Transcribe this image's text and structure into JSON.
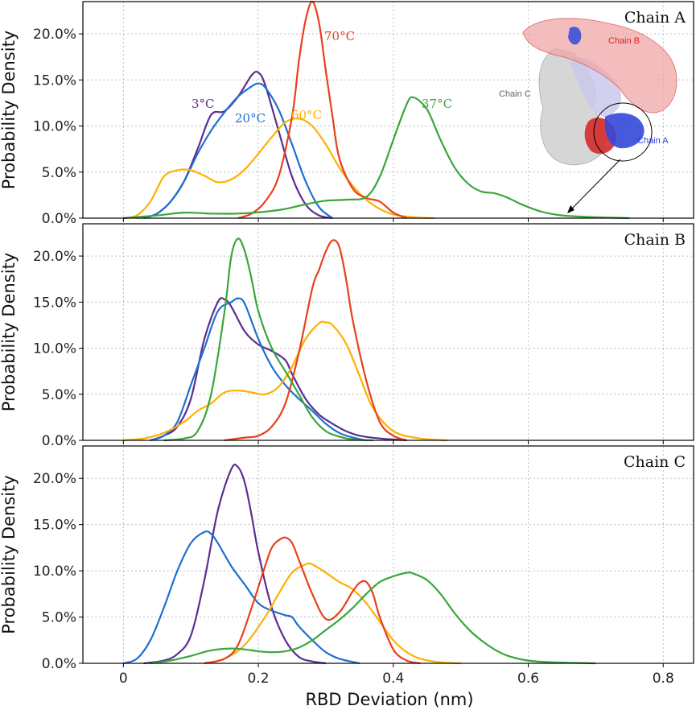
{
  "chart_data": [
    {
      "type": "line",
      "title": "Chain A",
      "xlabel": "",
      "ylabel": "Probability Density",
      "xlim": [
        -0.06,
        0.845
      ],
      "ylim": [
        0,
        0.235
      ],
      "xticks": [],
      "yticks": [
        "0.0%",
        "5.0%",
        "10.0%",
        "15.0%",
        "20.0%"
      ],
      "yticks_values": [
        0,
        0.05,
        0.1,
        0.15,
        0.2
      ],
      "xgrid": [
        0,
        0.2,
        0.4,
        0.6,
        0.8
      ],
      "series": [
        {
          "name": "3°C",
          "color": "#5c2d91",
          "x": [
            0.03,
            0.05,
            0.07,
            0.09,
            0.11,
            0.13,
            0.15,
            0.17,
            0.19,
            0.2,
            0.21,
            0.23,
            0.25,
            0.27,
            0.29,
            0.31
          ],
          "y": [
            0,
            0.005,
            0.018,
            0.04,
            0.075,
            0.112,
            0.116,
            0.132,
            0.155,
            0.158,
            0.145,
            0.095,
            0.045,
            0.015,
            0.003,
            0
          ]
        },
        {
          "name": "20°C",
          "color": "#1f6fd1",
          "x": [
            0.03,
            0.05,
            0.07,
            0.09,
            0.11,
            0.13,
            0.15,
            0.17,
            0.19,
            0.2,
            0.21,
            0.23,
            0.25,
            0.27,
            0.29,
            0.31
          ],
          "y": [
            0,
            0.005,
            0.018,
            0.04,
            0.07,
            0.095,
            0.115,
            0.132,
            0.143,
            0.146,
            0.142,
            0.118,
            0.08,
            0.04,
            0.012,
            0
          ]
        },
        {
          "name": "60°C",
          "color": "#ffb000",
          "x": [
            0,
            0.02,
            0.04,
            0.06,
            0.08,
            0.1,
            0.12,
            0.14,
            0.16,
            0.18,
            0.2,
            0.22,
            0.24,
            0.26,
            0.28,
            0.3,
            0.32,
            0.34,
            0.36,
            0.38,
            0.4,
            0.43,
            0.46
          ],
          "y": [
            0,
            0.003,
            0.018,
            0.045,
            0.052,
            0.052,
            0.046,
            0.039,
            0.042,
            0.053,
            0.07,
            0.088,
            0.104,
            0.108,
            0.1,
            0.08,
            0.055,
            0.035,
            0.02,
            0.01,
            0.004,
            0.001,
            0
          ]
        },
        {
          "name": "70°C",
          "color": "#e8401c",
          "x": [
            0.17,
            0.19,
            0.21,
            0.23,
            0.25,
            0.26,
            0.27,
            0.28,
            0.29,
            0.3,
            0.31,
            0.32,
            0.34,
            0.36,
            0.38,
            0.4,
            0.42
          ],
          "y": [
            0,
            0.005,
            0.018,
            0.045,
            0.11,
            0.17,
            0.215,
            0.235,
            0.212,
            0.16,
            0.11,
            0.065,
            0.032,
            0.022,
            0.018,
            0.006,
            0
          ]
        },
        {
          "name": "37°C",
          "color": "#3aa63a",
          "x": [
            0,
            0.05,
            0.09,
            0.13,
            0.17,
            0.21,
            0.24,
            0.27,
            0.3,
            0.33,
            0.36,
            0.38,
            0.4,
            0.42,
            0.43,
            0.45,
            0.47,
            0.49,
            0.51,
            0.53,
            0.55,
            0.57,
            0.59,
            0.62,
            0.65,
            0.7,
            0.75
          ],
          "y": [
            0,
            0.003,
            0.006,
            0.005,
            0.005,
            0.007,
            0.01,
            0.015,
            0.019,
            0.02,
            0.023,
            0.045,
            0.085,
            0.124,
            0.131,
            0.118,
            0.085,
            0.056,
            0.038,
            0.029,
            0.027,
            0.022,
            0.015,
            0.007,
            0.003,
            0.001,
            0
          ]
        }
      ],
      "annotations": [
        "3°C",
        "20°C",
        "60°C",
        "70°C",
        "37°C"
      ],
      "inset": {
        "labels": [
          "Chain B",
          "Chain C",
          "Chain A"
        ]
      }
    },
    {
      "type": "line",
      "title": "Chain B",
      "xlabel": "",
      "ylabel": "Probability Density",
      "xlim": [
        -0.06,
        0.845
      ],
      "ylim": [
        0,
        0.235
      ],
      "xticks": [],
      "yticks": [
        "0.0%",
        "5.0%",
        "10.0%",
        "15.0%",
        "20.0%"
      ],
      "yticks_values": [
        0,
        0.05,
        0.1,
        0.15,
        0.2
      ],
      "xgrid": [
        0,
        0.2,
        0.4,
        0.6,
        0.8
      ],
      "series": [
        {
          "name": "3°C",
          "color": "#5c2d91",
          "x": [
            0.04,
            0.06,
            0.08,
            0.1,
            0.12,
            0.14,
            0.15,
            0.16,
            0.18,
            0.2,
            0.22,
            0.24,
            0.25,
            0.27,
            0.29,
            0.31,
            0.33,
            0.35,
            0.38,
            0.42
          ],
          "y": [
            0,
            0.005,
            0.015,
            0.045,
            0.11,
            0.15,
            0.153,
            0.145,
            0.118,
            0.104,
            0.097,
            0.087,
            0.072,
            0.045,
            0.028,
            0.018,
            0.01,
            0.005,
            0.002,
            0
          ]
        },
        {
          "name": "20°C",
          "color": "#1f6fd1",
          "x": [
            0.04,
            0.06,
            0.08,
            0.1,
            0.12,
            0.14,
            0.16,
            0.17,
            0.18,
            0.2,
            0.22,
            0.24,
            0.26,
            0.28,
            0.3,
            0.32,
            0.34,
            0.36
          ],
          "y": [
            0,
            0.005,
            0.02,
            0.06,
            0.1,
            0.14,
            0.15,
            0.154,
            0.148,
            0.11,
            0.08,
            0.06,
            0.045,
            0.032,
            0.018,
            0.008,
            0.003,
            0
          ]
        },
        {
          "name": "60°C",
          "color": "#ffb000",
          "x": [
            0,
            0.03,
            0.06,
            0.09,
            0.11,
            0.13,
            0.15,
            0.17,
            0.19,
            0.21,
            0.23,
            0.25,
            0.27,
            0.29,
            0.3,
            0.31,
            0.33,
            0.35,
            0.37,
            0.4,
            0.44,
            0.48
          ],
          "y": [
            0,
            0.002,
            0.008,
            0.02,
            0.032,
            0.04,
            0.052,
            0.054,
            0.052,
            0.05,
            0.058,
            0.08,
            0.11,
            0.127,
            0.128,
            0.125,
            0.105,
            0.07,
            0.035,
            0.01,
            0.002,
            0
          ]
        },
        {
          "name": "70°C",
          "color": "#e8401c",
          "x": [
            0.15,
            0.18,
            0.2,
            0.22,
            0.24,
            0.26,
            0.28,
            0.29,
            0.3,
            0.31,
            0.32,
            0.33,
            0.34,
            0.36,
            0.38,
            0.4,
            0.42
          ],
          "y": [
            0,
            0.003,
            0.005,
            0.015,
            0.04,
            0.095,
            0.165,
            0.185,
            0.205,
            0.217,
            0.21,
            0.175,
            0.13,
            0.065,
            0.02,
            0.005,
            0
          ]
        },
        {
          "name": "37°C",
          "color": "#3aa63a",
          "x": [
            0.06,
            0.09,
            0.11,
            0.13,
            0.15,
            0.16,
            0.17,
            0.18,
            0.19,
            0.2,
            0.22,
            0.24,
            0.26,
            0.28,
            0.3,
            0.32,
            0.34,
            0.37
          ],
          "y": [
            0,
            0.002,
            0.01,
            0.05,
            0.14,
            0.2,
            0.219,
            0.205,
            0.175,
            0.14,
            0.1,
            0.075,
            0.05,
            0.025,
            0.01,
            0.004,
            0.001,
            0
          ]
        }
      ]
    },
    {
      "type": "line",
      "title": "Chain C",
      "xlabel": "RBD Deviation (nm)",
      "ylabel": "Probability Density",
      "xlim": [
        -0.06,
        0.845
      ],
      "ylim": [
        0,
        0.235
      ],
      "xticks": [
        "0",
        "0.2",
        "0.4",
        "0.6",
        "0.8"
      ],
      "xticks_values": [
        0,
        0.2,
        0.4,
        0.6,
        0.8
      ],
      "yticks": [
        "0.0%",
        "5.0%",
        "10.0%",
        "15.0%",
        "20.0%"
      ],
      "yticks_values": [
        0,
        0.05,
        0.1,
        0.15,
        0.2
      ],
      "xgrid": [
        0,
        0.2,
        0.4,
        0.6,
        0.8
      ],
      "series": [
        {
          "name": "3°C",
          "color": "#5c2d91",
          "x": [
            0.03,
            0.06,
            0.08,
            0.1,
            0.12,
            0.14,
            0.16,
            0.17,
            0.18,
            0.19,
            0.2,
            0.22,
            0.24,
            0.26,
            0.28,
            0.3
          ],
          "y": [
            0,
            0.003,
            0.01,
            0.03,
            0.09,
            0.165,
            0.21,
            0.212,
            0.195,
            0.16,
            0.12,
            0.06,
            0.025,
            0.007,
            0.002,
            0
          ]
        },
        {
          "name": "20°C",
          "color": "#1f6fd1",
          "x": [
            0,
            0.02,
            0.04,
            0.06,
            0.08,
            0.1,
            0.12,
            0.13,
            0.14,
            0.16,
            0.18,
            0.2,
            0.22,
            0.24,
            0.25,
            0.26,
            0.28,
            0.3,
            0.32,
            0.35
          ],
          "y": [
            0,
            0.005,
            0.025,
            0.06,
            0.1,
            0.13,
            0.142,
            0.14,
            0.13,
            0.105,
            0.085,
            0.065,
            0.057,
            0.052,
            0.05,
            0.04,
            0.025,
            0.012,
            0.005,
            0
          ]
        },
        {
          "name": "60°C",
          "color": "#ffb000",
          "x": [
            0.12,
            0.15,
            0.18,
            0.21,
            0.23,
            0.25,
            0.27,
            0.28,
            0.3,
            0.32,
            0.34,
            0.36,
            0.38,
            0.4,
            0.42,
            0.44,
            0.47,
            0.5
          ],
          "y": [
            0,
            0.005,
            0.02,
            0.05,
            0.075,
            0.098,
            0.107,
            0.107,
            0.098,
            0.088,
            0.08,
            0.065,
            0.045,
            0.025,
            0.012,
            0.005,
            0.001,
            0
          ]
        },
        {
          "name": "70°C",
          "color": "#e8401c",
          "x": [
            0.12,
            0.15,
            0.17,
            0.19,
            0.21,
            0.22,
            0.23,
            0.24,
            0.25,
            0.26,
            0.28,
            0.3,
            0.32,
            0.34,
            0.35,
            0.36,
            0.37,
            0.38,
            0.4,
            0.42,
            0.44
          ],
          "y": [
            0,
            0.005,
            0.02,
            0.06,
            0.105,
            0.125,
            0.133,
            0.136,
            0.13,
            0.112,
            0.075,
            0.048,
            0.055,
            0.078,
            0.087,
            0.088,
            0.075,
            0.05,
            0.015,
            0.003,
            0
          ]
        },
        {
          "name": "37°C",
          "color": "#3aa63a",
          "x": [
            0.04,
            0.07,
            0.1,
            0.13,
            0.16,
            0.18,
            0.2,
            0.22,
            0.24,
            0.26,
            0.28,
            0.3,
            0.32,
            0.34,
            0.36,
            0.38,
            0.4,
            0.42,
            0.43,
            0.45,
            0.47,
            0.49,
            0.51,
            0.53,
            0.55,
            0.57,
            0.6,
            0.64,
            0.7
          ],
          "y": [
            0,
            0.003,
            0.008,
            0.014,
            0.016,
            0.015,
            0.013,
            0.012,
            0.013,
            0.017,
            0.025,
            0.036,
            0.047,
            0.06,
            0.075,
            0.088,
            0.094,
            0.098,
            0.097,
            0.09,
            0.075,
            0.055,
            0.038,
            0.025,
            0.015,
            0.008,
            0.003,
            0.001,
            0
          ]
        }
      ]
    }
  ]
}
